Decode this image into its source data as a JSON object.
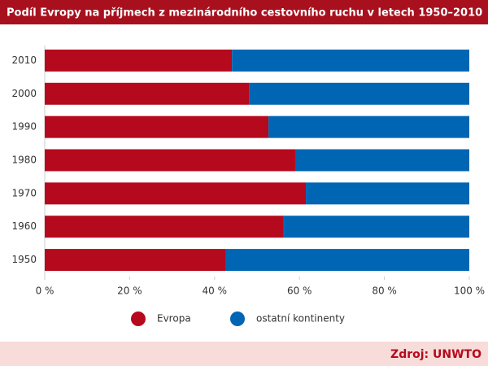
{
  "chart_data": {
    "type": "stacked_bar_horizontal",
    "title": "Podíl Evropy na příjmech z mezinárodního cestovního ruchu v letech 1950–2010",
    "categories": [
      "2010",
      "2000",
      "1990",
      "1980",
      "1970",
      "1960",
      "1950"
    ],
    "series": [
      {
        "name": "Evropa",
        "color": "#b5091e",
        "values": [
          44.1,
          48.1,
          52.7,
          59,
          61.5,
          56.3,
          42.7
        ]
      },
      {
        "name": "ostatní kontinenty",
        "color": "#0066b3",
        "values": [
          55.9,
          51.9,
          47.3,
          41,
          38.5,
          43.7,
          57.3
        ]
      }
    ],
    "xlim": [
      0,
      100
    ],
    "xticks": [
      {
        "value": 0,
        "label": "0 %"
      },
      {
        "value": 20,
        "label": "20 %"
      },
      {
        "value": 40,
        "label": "40 %"
      },
      {
        "value": 60,
        "label": "60 %"
      },
      {
        "value": 80,
        "label": "80 %"
      },
      {
        "value": 100,
        "label": "100 %"
      }
    ],
    "source": "Zdroj: UNWTO"
  }
}
